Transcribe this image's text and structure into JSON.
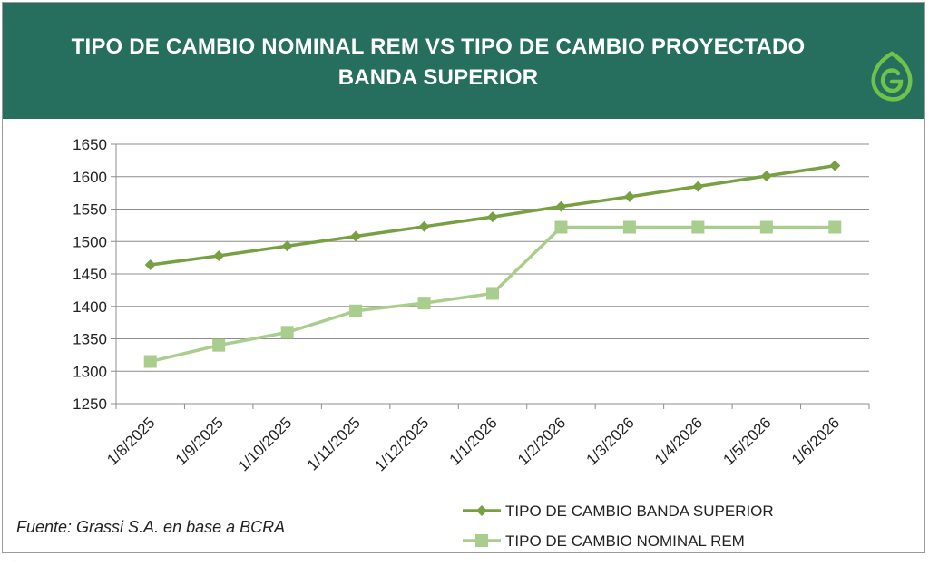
{
  "header": {
    "title": "TIPO DE CAMBIO NOMINAL REM VS TIPO DE CAMBIO PROYECTADO BANDA SUPERIOR",
    "background_color": "#266e5e",
    "logo_icon": "grassi-leaf-logo-icon"
  },
  "footer": {
    "source": "Fuente: Grassi S.A.  en base a BCRA"
  },
  "chart_data": {
    "type": "line",
    "title": "TIPO DE CAMBIO NOMINAL REM VS TIPO DE CAMBIO PROYECTADO BANDA SUPERIOR",
    "xlabel": "",
    "ylabel": "",
    "categories": [
      "1/8/2025",
      "1/9/2025",
      "1/10/2025",
      "1/11/2025",
      "1/12/2025",
      "1/1/2026",
      "1/2/2026",
      "1/3/2026",
      "1/4/2026",
      "1/5/2026",
      "1/6/2026"
    ],
    "ylim": [
      1250,
      1650
    ],
    "yticks": [
      1250,
      1300,
      1350,
      1400,
      1450,
      1500,
      1550,
      1600,
      1650
    ],
    "grid": true,
    "legend_position": "bottom-right",
    "series": [
      {
        "name": "TIPO DE CAMBIO BANDA SUPERIOR",
        "marker": "diamond",
        "color": "#77a043",
        "values": [
          1464,
          1478,
          1493,
          1508,
          1523,
          1538,
          1554,
          1569,
          1585,
          1601,
          1617
        ]
      },
      {
        "name": "TIPO DE CAMBIO NOMINAL REM",
        "marker": "square",
        "color": "#a9cd8c",
        "values": [
          1315,
          1340,
          1360,
          1393,
          1405,
          1420,
          1522,
          1522,
          1522,
          1522,
          1522
        ]
      }
    ]
  }
}
